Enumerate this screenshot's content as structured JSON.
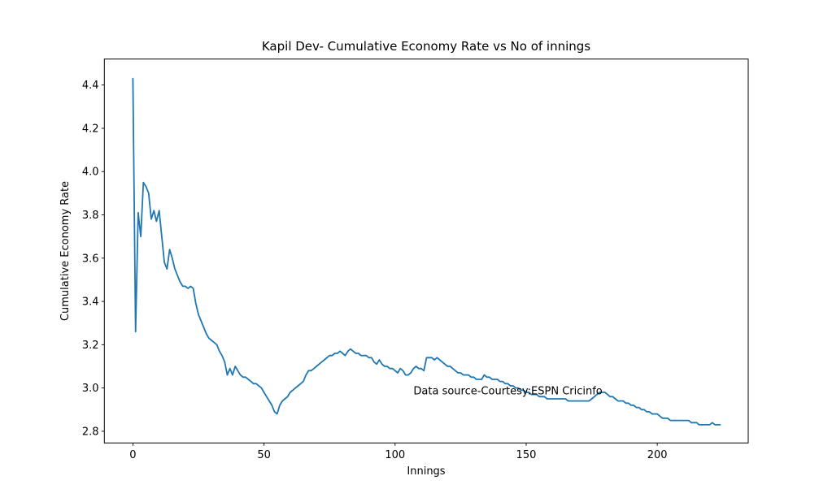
{
  "figure": {
    "background": "#ffffff",
    "line_color": "#1f77b4",
    "axis_color": "#000000",
    "text_color": "#000000"
  },
  "chart_data": {
    "type": "line",
    "title": "Kapil Dev- Cumulative Economy Rate vs No of innings",
    "xlabel": "Innings",
    "ylabel": "Cumulative Economy Rate",
    "xlim": [
      -10.9,
      234.7
    ],
    "ylim": [
      2.746,
      4.52
    ],
    "xticks": [
      0,
      50,
      100,
      150,
      200
    ],
    "yticks": [
      "2.8",
      "3.0",
      "3.2",
      "3.4",
      "3.6",
      "3.8",
      "4.0",
      "4.2",
      "4.4"
    ],
    "grid": false,
    "legend": "none",
    "annotation": {
      "text": "Data source-Courtesy:ESPN Cricinfo",
      "x": 107,
      "y": 2.97
    },
    "series": [
      {
        "name": "Kapil Dev cumulative economy rate",
        "x_start": 0,
        "x_step": 1,
        "values": [
          4.43,
          3.26,
          3.81,
          3.7,
          3.95,
          3.93,
          3.9,
          3.78,
          3.82,
          3.77,
          3.82,
          3.7,
          3.58,
          3.55,
          3.64,
          3.6,
          3.55,
          3.52,
          3.49,
          3.47,
          3.47,
          3.46,
          3.47,
          3.46,
          3.39,
          3.34,
          3.31,
          3.28,
          3.25,
          3.23,
          3.22,
          3.21,
          3.2,
          3.17,
          3.15,
          3.12,
          3.06,
          3.09,
          3.06,
          3.1,
          3.08,
          3.06,
          3.05,
          3.05,
          3.04,
          3.03,
          3.02,
          3.02,
          3.01,
          3.0,
          2.98,
          2.96,
          2.94,
          2.92,
          2.89,
          2.88,
          2.92,
          2.94,
          2.95,
          2.96,
          2.98,
          2.99,
          3.0,
          3.01,
          3.02,
          3.03,
          3.06,
          3.08,
          3.08,
          3.09,
          3.1,
          3.11,
          3.12,
          3.13,
          3.14,
          3.15,
          3.15,
          3.16,
          3.16,
          3.17,
          3.16,
          3.15,
          3.17,
          3.18,
          3.17,
          3.16,
          3.16,
          3.15,
          3.15,
          3.15,
          3.14,
          3.14,
          3.12,
          3.11,
          3.13,
          3.11,
          3.1,
          3.1,
          3.09,
          3.09,
          3.08,
          3.07,
          3.09,
          3.08,
          3.06,
          3.06,
          3.07,
          3.09,
          3.1,
          3.09,
          3.09,
          3.08,
          3.14,
          3.14,
          3.14,
          3.13,
          3.14,
          3.13,
          3.12,
          3.11,
          3.1,
          3.1,
          3.09,
          3.08,
          3.07,
          3.07,
          3.06,
          3.06,
          3.06,
          3.05,
          3.05,
          3.04,
          3.04,
          3.04,
          3.06,
          3.05,
          3.05,
          3.04,
          3.04,
          3.04,
          3.03,
          3.03,
          3.02,
          3.02,
          3.01,
          3.01,
          3.0,
          3.0,
          2.99,
          2.99,
          2.98,
          2.98,
          2.97,
          2.97,
          2.97,
          2.96,
          2.96,
          2.96,
          2.95,
          2.95,
          2.95,
          2.95,
          2.95,
          2.95,
          2.95,
          2.95,
          2.94,
          2.94,
          2.94,
          2.94,
          2.94,
          2.94,
          2.94,
          2.94,
          2.94,
          2.95,
          2.96,
          2.97,
          2.98,
          2.98,
          2.98,
          2.97,
          2.96,
          2.96,
          2.95,
          2.94,
          2.94,
          2.94,
          2.93,
          2.93,
          2.92,
          2.92,
          2.91,
          2.91,
          2.9,
          2.9,
          2.89,
          2.89,
          2.88,
          2.88,
          2.88,
          2.87,
          2.86,
          2.86,
          2.86,
          2.85,
          2.85,
          2.85,
          2.85,
          2.85,
          2.85,
          2.85,
          2.85,
          2.84,
          2.84,
          2.84,
          2.83,
          2.83,
          2.83,
          2.83,
          2.83,
          2.84,
          2.83,
          2.83,
          2.83
        ]
      }
    ]
  }
}
